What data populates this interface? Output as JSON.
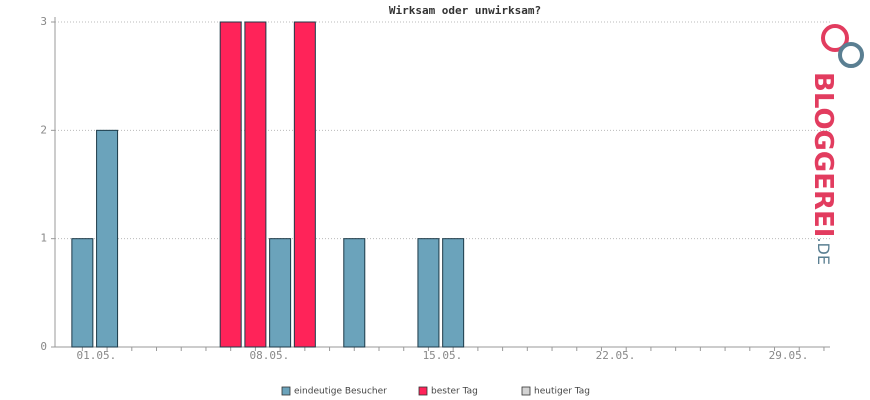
{
  "chart_data": {
    "type": "bar",
    "title": "Wirksam oder unwirksam?",
    "categories": [
      "01.05.",
      null,
      null,
      null,
      null,
      null,
      null,
      "08.05.",
      null,
      null,
      null,
      null,
      null,
      null,
      "15.05.",
      null,
      null,
      null,
      null,
      null,
      null,
      "22.05.",
      null,
      null,
      null,
      null,
      null,
      null,
      "29.05.",
      null,
      null
    ],
    "series": [
      {
        "name": "eindeutige Besucher",
        "color": "#6ba3bb",
        "values": [
          1,
          2,
          0,
          0,
          0,
          0,
          null,
          null,
          1,
          null,
          0,
          1,
          0,
          0,
          1,
          1,
          0,
          0,
          0,
          0,
          0,
          0,
          0,
          0,
          0,
          0,
          0,
          0,
          0,
          0,
          0
        ]
      },
      {
        "name": "bester Tag",
        "color": "#ff2359",
        "values": [
          null,
          null,
          null,
          null,
          null,
          null,
          3,
          3,
          null,
          3,
          null,
          null,
          null,
          null,
          null,
          null,
          null,
          null,
          null,
          null,
          null,
          null,
          null,
          null,
          null,
          null,
          null,
          null,
          null,
          null,
          null
        ]
      },
      {
        "name": "heutiger Tag",
        "color": "#d3d3d3",
        "values": [
          null,
          null,
          null,
          null,
          null,
          null,
          null,
          null,
          null,
          null,
          null,
          null,
          null,
          null,
          null,
          null,
          null,
          null,
          null,
          null,
          null,
          null,
          null,
          null,
          null,
          null,
          null,
          null,
          null,
          null,
          null
        ]
      }
    ],
    "ylim": [
      0,
      3
    ],
    "yticks": [
      0,
      1,
      2,
      3
    ],
    "grid": true
  },
  "logo": {
    "text": "BLOGGEREI",
    "suffix": ".DE"
  }
}
